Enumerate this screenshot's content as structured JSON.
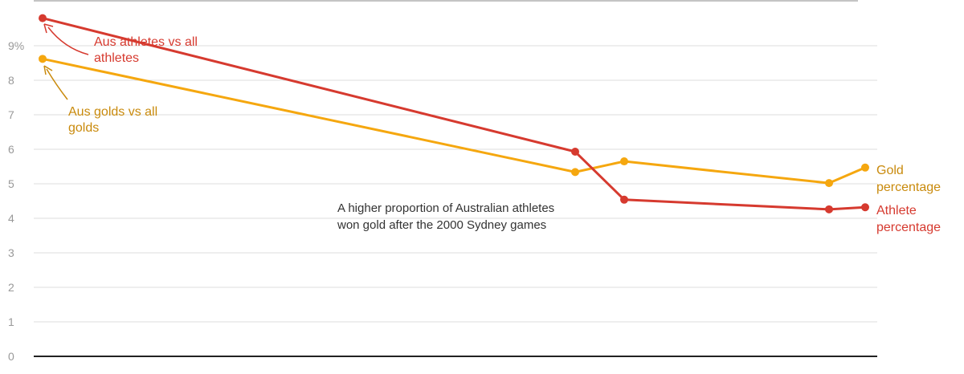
{
  "chart_data": {
    "type": "line",
    "title": "",
    "xlabel": "",
    "ylabel": "",
    "ylim": [
      0,
      10
    ],
    "y_ticks": [
      "0",
      "1",
      "2",
      "3",
      "4",
      "5",
      "6",
      "7",
      "8",
      "9%"
    ],
    "grid": true,
    "colors": {
      "athletes": "#d63a2f",
      "golds": "#f5a70f",
      "golds_text": "#c98a0c"
    },
    "series": [
      {
        "key": "athletes",
        "name": "Athlete percentage",
        "points": [
          {
            "x": 1,
            "y": 9.8
          },
          {
            "x": 2,
            "y": 5.93
          },
          {
            "x": 3,
            "y": 4.54
          },
          {
            "x": 4,
            "y": 4.26
          },
          {
            "x": 5,
            "y": 4.32
          }
        ]
      },
      {
        "key": "golds",
        "name": "Gold percentage",
        "points": [
          {
            "x": 1,
            "y": 8.62
          },
          {
            "x": 2,
            "y": 5.34
          },
          {
            "x": 3,
            "y": 5.65
          },
          {
            "x": 4,
            "y": 5.02
          },
          {
            "x": 5,
            "y": 5.47
          }
        ]
      }
    ],
    "annotations": {
      "athletes_start": [
        "Aus athletes vs all",
        "athletes"
      ],
      "golds_start": [
        "Aus golds vs all",
        "golds"
      ],
      "note": [
        "A higher proportion of Australian athletes",
        "won gold after the 2000 Sydney games"
      ],
      "gold_end": [
        "Gold",
        "percentage"
      ],
      "athlete_end": [
        "Athlete",
        "percentage"
      ]
    }
  }
}
